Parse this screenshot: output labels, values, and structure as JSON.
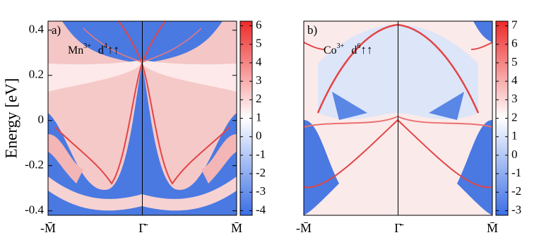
{
  "chart_data": [
    {
      "type": "heatmap",
      "panel_label": "a)",
      "annotation": {
        "ion": "Mn",
        "charge": "3+",
        "orbital": "d",
        "occupation": "4",
        "spin": "↑↑"
      },
      "ylabel": "Energy [eV]",
      "xlim": [
        -1,
        1
      ],
      "xticks": [
        {
          "value": -1,
          "label": "-M̄"
        },
        {
          "value": 0,
          "label": "Γ̄"
        },
        {
          "value": 1,
          "label": "M̄"
        }
      ],
      "ylim": [
        -0.42,
        0.44
      ],
      "yticks": [
        0.4,
        0.2,
        0,
        -0.2,
        -0.4
      ],
      "colormap": [
        "#3a6ee6",
        "#ffffff",
        "#ee2a2a"
      ],
      "clim": [
        -4.25,
        6.25
      ],
      "cticks": [
        6,
        5,
        4,
        3,
        2,
        1,
        0,
        -1,
        -2,
        -3,
        -4
      ]
    },
    {
      "type": "heatmap",
      "panel_label": "b)",
      "annotation": {
        "ion": "Co",
        "charge": "3+",
        "orbital": "d",
        "occupation": "6",
        "spin": "↑↑"
      },
      "xlim": [
        -1,
        1
      ],
      "xticks": [
        {
          "value": -1,
          "label": "-M̄"
        },
        {
          "value": 0,
          "label": "Γ̄"
        },
        {
          "value": 1,
          "label": "M̄"
        }
      ],
      "ylim": [
        -0.42,
        0.44
      ],
      "colormap": [
        "#3a6ee6",
        "#ffffff",
        "#ee2a2a"
      ],
      "clim": [
        -3.25,
        7.25
      ],
      "cticks": [
        7,
        6,
        5,
        4,
        3,
        2,
        1,
        0,
        -1,
        -2,
        -3
      ]
    }
  ]
}
